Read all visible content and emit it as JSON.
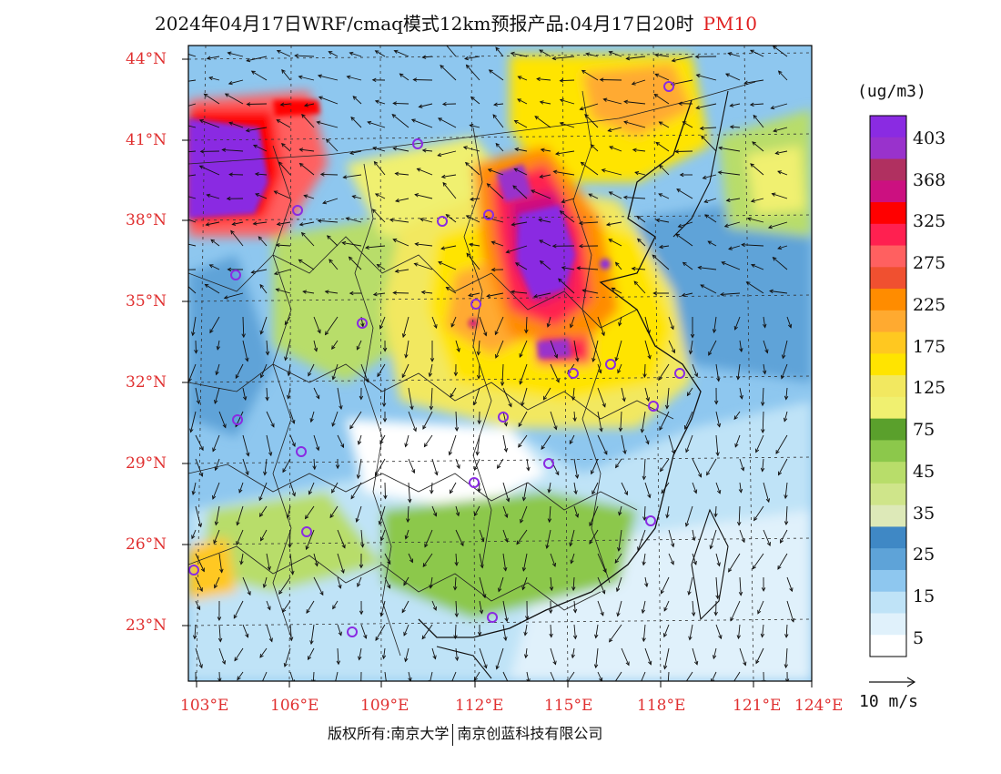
{
  "header": {
    "title": "2024年04月17日WRF/cmaq模式12km预报产品:04月17日20时",
    "species": "PM10"
  },
  "map": {
    "lat_labels": [
      "44°N",
      "41°N",
      "38°N",
      "35°N",
      "32°N",
      "29°N",
      "26°N",
      "23°N"
    ],
    "lon_labels": [
      "103°E",
      "106°E",
      "109°E",
      "112°E",
      "115°E",
      "118°E",
      "121°E",
      "124°E"
    ]
  },
  "legend": {
    "unit": "(ug/m3)",
    "ticks": [
      "403",
      "368",
      "325",
      "275",
      "225",
      "175",
      "125",
      "75",
      "45",
      "35",
      "25",
      "15",
      "5"
    ],
    "colors": [
      "#8a2be2",
      "#9932cc",
      "#b03060",
      "#cc1080",
      "#ff0000",
      "#ff2050",
      "#ff6060",
      "#f05030",
      "#ff8c00",
      "#ffaa30",
      "#ffc820",
      "#ffe400",
      "#f2e860",
      "#f0f070",
      "#5aa02c",
      "#8cc84b",
      "#b8dd6a",
      "#cfe58a",
      "#dde9b8",
      "#3f88c5",
      "#5ea3d8",
      "#8ec7ef",
      "#bfe3f7",
      "#e0f1fb",
      "#ffffff"
    ]
  },
  "wind_legend": {
    "label": "10 m/s"
  },
  "footer": {
    "left": "版权所有:南京大学",
    "right": "南京创蓝科技有限公司"
  }
}
